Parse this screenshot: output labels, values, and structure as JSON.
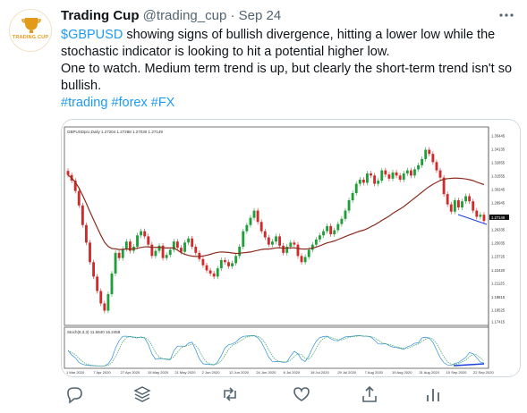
{
  "tweet": {
    "author_name": "Trading Cup",
    "handle": "@trading_cup",
    "separator": "·",
    "date": "Sep 24",
    "avatar_text": "TRADING CUP",
    "cashtag": "$GBPUSD",
    "text_line1": " showing signs of bullish divergence, hitting a lower low while the stochastic indicator is looking to hit a potential higher low.",
    "text_line2": "One to watch. Medium term trend is up, but clearly the short-term trend isn't so bullish.",
    "hashtags": "#trading #forex #FX"
  },
  "chart": {
    "header_label": "GBPUSDpro,Daily  1.27204 1.27288 1.27030 1.27149",
    "price_labels": [
      "1.35445",
      "1.34135",
      "1.32855",
      "1.31555",
      "1.30245",
      "1.28945",
      "1.27645",
      "1.26335",
      "1.25035",
      "1.23725",
      "1.22420",
      "1.21125",
      "1.19815",
      "1.18525",
      "1.17415"
    ],
    "current_price": "1.27149",
    "stoch_label": "Stoch(8,3,3) 11.6940 16.2459",
    "date_labels": [
      "1 Mar 2020",
      "7 Apr 2020",
      "27 Apr 2020",
      "15 May 2020",
      "21 May 2020",
      "2 Jun 2020",
      "12 Jun 2020",
      "24 Jun 2020",
      "6 Jul 2020",
      "18 Jul 2020",
      "29 Jul 2020",
      "7 Aug 2020",
      "19 Aug 2020",
      "31 Aug 2020",
      "10 Sep 2020",
      "22 Sep 2020"
    ],
    "colors": {
      "up": "#1f9e3a",
      "down": "#d22a2a",
      "ma": "#8b2a1e",
      "divergence": "#1d3fe0",
      "stoch_main": "#2a8fd6",
      "stoch_signal": "#3aa05a"
    }
  },
  "chart_data": {
    "type": "candlestick",
    "title": "GBPUSDpro,Daily",
    "y_range": [
      1.17415,
      1.35445
    ],
    "close_series": [
      1.3165,
      1.311,
      1.301,
      1.287,
      1.268,
      1.251,
      1.232,
      1.218,
      1.204,
      1.192,
      1.185,
      1.201,
      1.221,
      1.241,
      1.236,
      1.245,
      1.252,
      1.243,
      1.247,
      1.258,
      1.262,
      1.257,
      1.249,
      1.238,
      1.243,
      1.248,
      1.236,
      1.239,
      1.244,
      1.252,
      1.246,
      1.242,
      1.251,
      1.255,
      1.247,
      1.241,
      1.235,
      1.229,
      1.224,
      1.221,
      1.218,
      1.226,
      1.234,
      1.232,
      1.228,
      1.231,
      1.238,
      1.247,
      1.262,
      1.268,
      1.275,
      1.282,
      1.271,
      1.262,
      1.256,
      1.249,
      1.252,
      1.257,
      1.248,
      1.241,
      1.247,
      1.251,
      1.249,
      1.238,
      1.232,
      1.237,
      1.244,
      1.249,
      1.254,
      1.258,
      1.262,
      1.267,
      1.259,
      1.263,
      1.269,
      1.274,
      1.282,
      1.292,
      1.299,
      1.308,
      1.312,
      1.309,
      1.318,
      1.316,
      1.308,
      1.311,
      1.321,
      1.317,
      1.313,
      1.319,
      1.316,
      1.312,
      1.318,
      1.321,
      1.316,
      1.322,
      1.326,
      1.332,
      1.341,
      1.337,
      1.329,
      1.321,
      1.314,
      1.298,
      1.288,
      1.281,
      1.292,
      1.285,
      1.291,
      1.296,
      1.291,
      1.282,
      1.276,
      1.278,
      1.272
    ],
    "moving_average": "long-period moving average (dark red)",
    "divergence_annotation": "blue trend lines marking lower low on price and higher low on stochastic"
  },
  "actions": {
    "comments": "comment-icon",
    "collections": "layers-icon",
    "retweet": "retweet-icon",
    "like": "heart-icon",
    "share": "share-icon",
    "analytics": "analytics-icon"
  }
}
